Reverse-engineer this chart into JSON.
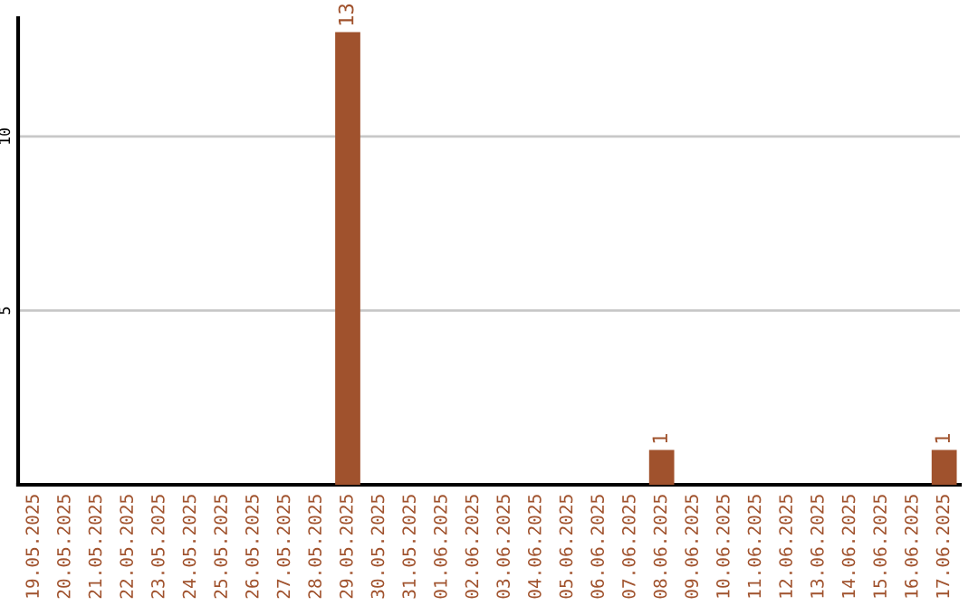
{
  "chart_data": {
    "type": "bar",
    "categories": [
      "19.05.2025",
      "20.05.2025",
      "21.05.2025",
      "22.05.2025",
      "23.05.2025",
      "24.05.2025",
      "25.05.2025",
      "26.05.2025",
      "27.05.2025",
      "28.05.2025",
      "29.05.2025",
      "30.05.2025",
      "31.05.2025",
      "01.06.2025",
      "02.06.2025",
      "03.06.2025",
      "04.06.2025",
      "05.06.2025",
      "06.06.2025",
      "07.06.2025",
      "08.06.2025",
      "09.06.2025",
      "10.06.2025",
      "11.06.2025",
      "12.06.2025",
      "13.06.2025",
      "14.06.2025",
      "15.06.2025",
      "16.06.2025",
      "17.06.2025"
    ],
    "values": [
      0,
      0,
      0,
      0,
      0,
      0,
      0,
      0,
      0,
      0,
      13,
      0,
      0,
      0,
      0,
      0,
      0,
      0,
      0,
      0,
      1,
      0,
      0,
      0,
      0,
      0,
      0,
      0,
      0,
      1
    ],
    "value_labels": [
      null,
      null,
      null,
      null,
      null,
      null,
      null,
      null,
      null,
      null,
      "13",
      null,
      null,
      null,
      null,
      null,
      null,
      null,
      null,
      null,
      "1",
      null,
      null,
      null,
      null,
      null,
      null,
      null,
      null,
      "1"
    ],
    "color": "#a0522d",
    "ylim": [
      0,
      13.4
    ],
    "yticks": [
      5,
      10
    ],
    "grid": "y",
    "legend": false
  }
}
